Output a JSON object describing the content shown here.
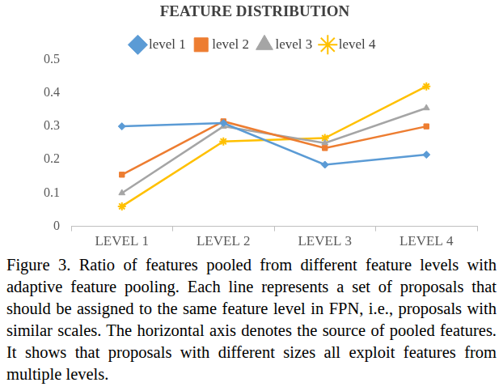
{
  "chart_data": {
    "type": "line",
    "title": "FEATURE DISTRIBUTION",
    "categories": [
      "LEVEL 1",
      "LEVEL 2",
      "LEVEL 3",
      "LEVEL 4"
    ],
    "series": [
      {
        "name": "level 1",
        "color": "#5b9bd5",
        "marker": "diamond",
        "values": [
          0.3,
          0.31,
          0.185,
          0.215
        ]
      },
      {
        "name": "level 2",
        "color": "#ed7d31",
        "marker": "square",
        "values": [
          0.155,
          0.315,
          0.235,
          0.3
        ]
      },
      {
        "name": "level 3",
        "color": "#a5a5a5",
        "marker": "triangle",
        "values": [
          0.1,
          0.3,
          0.25,
          0.355
        ]
      },
      {
        "name": "level 4",
        "color": "#ffc000",
        "marker": "star",
        "values": [
          0.06,
          0.255,
          0.265,
          0.42
        ]
      }
    ],
    "ylim": [
      0,
      0.5
    ],
    "yticks": [
      0,
      0.1,
      0.2,
      0.3,
      0.4,
      0.5
    ],
    "grid": false,
    "legend": "top"
  },
  "caption": "Figure 3. Ratio of features pooled from different feature levels with adaptive feature pooling. Each line represents a set of proposals that should be assigned to the same feature level in FPN, i.e., proposals with similar scales. The horizontal axis denotes the source of pooled features. It shows that proposals with different sizes all exploit features from multiple levels."
}
